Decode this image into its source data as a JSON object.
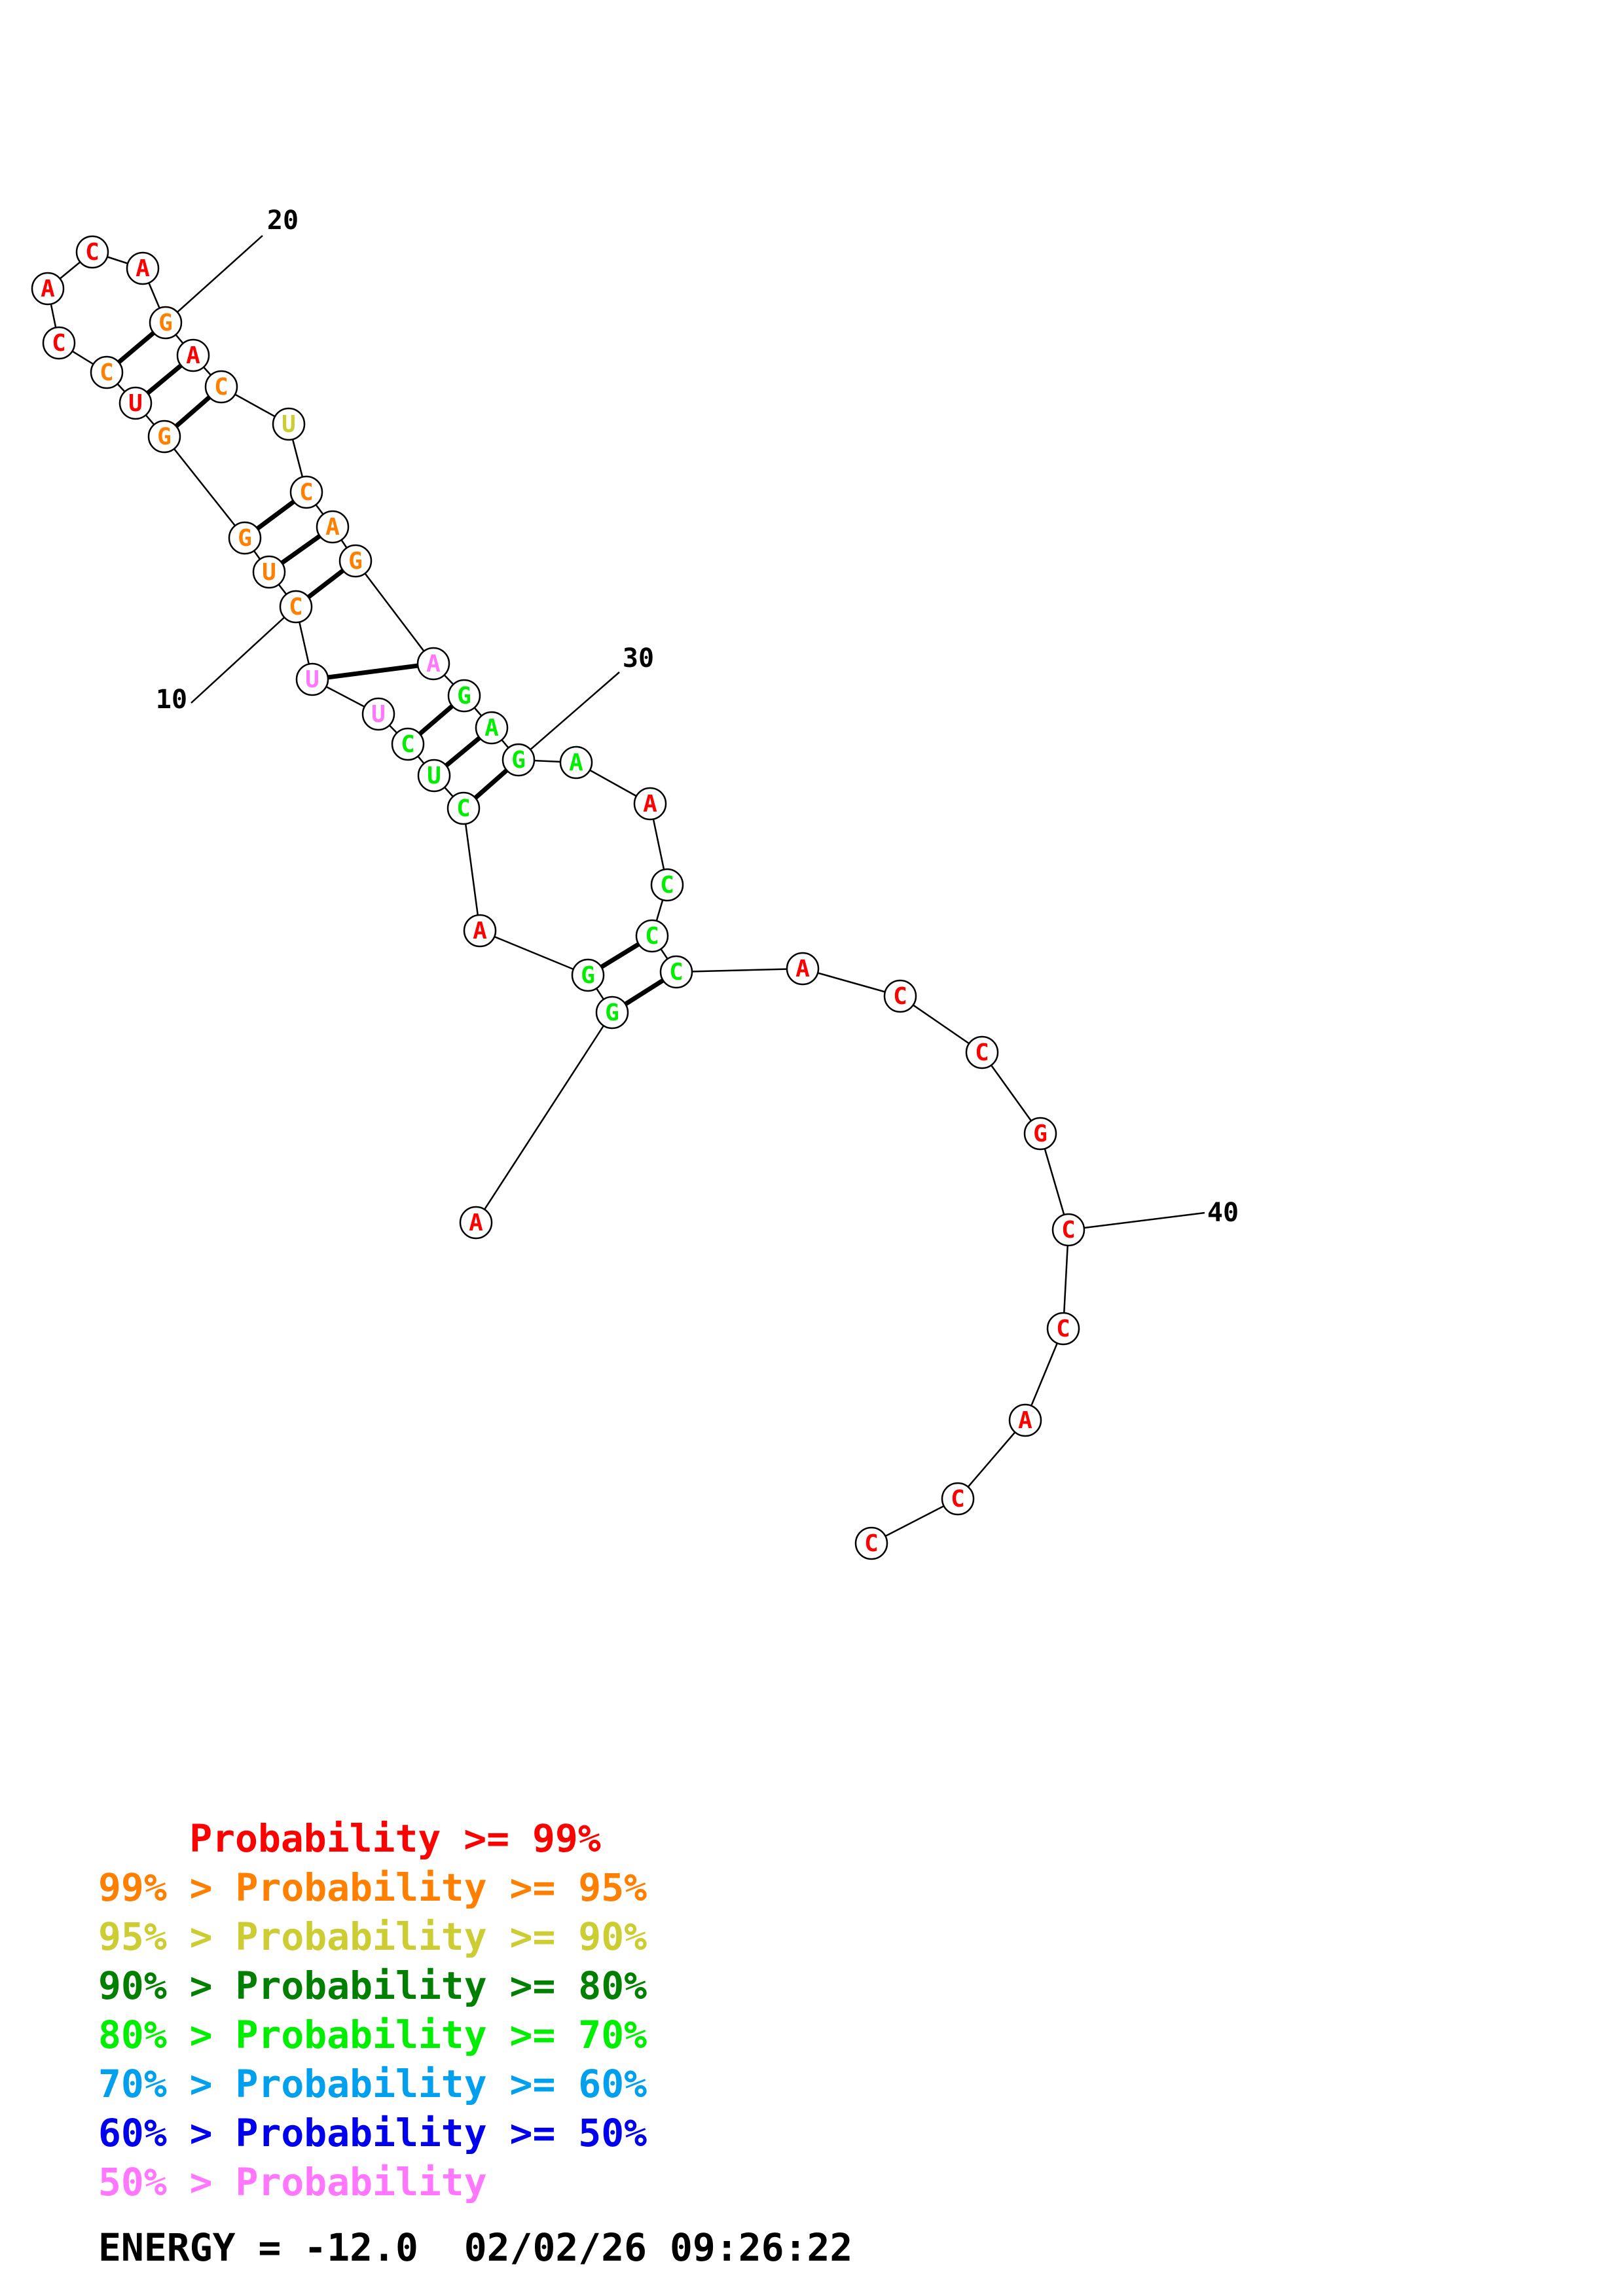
{
  "colors": {
    "p99": "#ff0000",
    "p95": "#ff7f00",
    "p90": "#cccc33",
    "p80": "#007f00",
    "p70": "#00ee00",
    "p60": "#00a0ee",
    "p50": "#0000ee",
    "plow": "#ff77ff"
  },
  "nucleotides": [
    {
      "n": 1,
      "base": "A",
      "color": "p99"
    },
    {
      "n": 2,
      "base": "G",
      "color": "p70"
    },
    {
      "n": 3,
      "base": "G",
      "color": "p70"
    },
    {
      "n": 4,
      "base": "A",
      "color": "p99"
    },
    {
      "n": 5,
      "base": "C",
      "color": "p70"
    },
    {
      "n": 6,
      "base": "U",
      "color": "p70"
    },
    {
      "n": 7,
      "base": "C",
      "color": "p70"
    },
    {
      "n": 8,
      "base": "U",
      "color": "plow"
    },
    {
      "n": 9,
      "base": "U",
      "color": "plow"
    },
    {
      "n": 10,
      "base": "C",
      "color": "p95"
    },
    {
      "n": 11,
      "base": "U",
      "color": "p95"
    },
    {
      "n": 12,
      "base": "G",
      "color": "p95"
    },
    {
      "n": 13,
      "base": "G",
      "color": "p95"
    },
    {
      "n": 14,
      "base": "U",
      "color": "p99"
    },
    {
      "n": 15,
      "base": "C",
      "color": "p95"
    },
    {
      "n": 16,
      "base": "C",
      "color": "p99"
    },
    {
      "n": 17,
      "base": "A",
      "color": "p99"
    },
    {
      "n": 18,
      "base": "C",
      "color": "p99"
    },
    {
      "n": 19,
      "base": "A",
      "color": "p99"
    },
    {
      "n": 20,
      "base": "G",
      "color": "p95"
    },
    {
      "n": 21,
      "base": "A",
      "color": "p99"
    },
    {
      "n": 22,
      "base": "C",
      "color": "p95"
    },
    {
      "n": 23,
      "base": "U",
      "color": "p90"
    },
    {
      "n": 24,
      "base": "C",
      "color": "p95"
    },
    {
      "n": 25,
      "base": "A",
      "color": "p95"
    },
    {
      "n": 26,
      "base": "G",
      "color": "p95"
    },
    {
      "n": 27,
      "base": "A",
      "color": "plow"
    },
    {
      "n": 28,
      "base": "G",
      "color": "p70"
    },
    {
      "n": 29,
      "base": "A",
      "color": "p70"
    },
    {
      "n": 30,
      "base": "G",
      "color": "p70"
    },
    {
      "n": 31,
      "base": "A",
      "color": "p70"
    },
    {
      "n": 32,
      "base": "A",
      "color": "p99"
    },
    {
      "n": 33,
      "base": "C",
      "color": "p70"
    },
    {
      "n": 34,
      "base": "C",
      "color": "p70"
    },
    {
      "n": 35,
      "base": "C",
      "color": "p70"
    },
    {
      "n": 36,
      "base": "A",
      "color": "p99"
    },
    {
      "n": 37,
      "base": "C",
      "color": "p99"
    },
    {
      "n": 38,
      "base": "C",
      "color": "p99"
    },
    {
      "n": 39,
      "base": "G",
      "color": "p99"
    },
    {
      "n": 40,
      "base": "C",
      "color": "p99"
    },
    {
      "n": 41,
      "base": "C",
      "color": "p99"
    },
    {
      "n": 42,
      "base": "A",
      "color": "p99"
    },
    {
      "n": 43,
      "base": "C",
      "color": "p99"
    },
    {
      "n": 44,
      "base": "C",
      "color": "p99"
    }
  ],
  "pairs": [
    [
      2,
      35
    ],
    [
      3,
      34
    ],
    [
      5,
      30
    ],
    [
      6,
      29
    ],
    [
      7,
      28
    ],
    [
      9,
      27
    ],
    [
      10,
      26
    ],
    [
      11,
      25
    ],
    [
      12,
      24
    ],
    [
      13,
      22
    ],
    [
      14,
      21
    ],
    [
      15,
      20
    ]
  ],
  "position_labels": [
    {
      "n": 10,
      "text": "10"
    },
    {
      "n": 20,
      "text": "20"
    },
    {
      "n": 30,
      "text": "30"
    },
    {
      "n": 40,
      "text": "40"
    }
  ],
  "legend": [
    {
      "prefix": "    ",
      "text": "Probability >= 99%",
      "color": "p99"
    },
    {
      "prefix": "",
      "text": "99% > Probability >= 95%",
      "color": "p95"
    },
    {
      "prefix": "",
      "text": "95% > Probability >= 90%",
      "color": "p90"
    },
    {
      "prefix": "",
      "text": "90% > Probability >= 80%",
      "color": "p80"
    },
    {
      "prefix": "",
      "text": "80% > Probability >= 70%",
      "color": "p70"
    },
    {
      "prefix": "",
      "text": "70% > Probability >= 60%",
      "color": "p60"
    },
    {
      "prefix": "",
      "text": "60% > Probability >= 50%",
      "color": "p50"
    },
    {
      "prefix": "",
      "text": "50% > Probability",
      "color": "plow"
    }
  ],
  "footer": {
    "energy": "ENERGY = -12.0  02/02/26 09:26:22"
  }
}
